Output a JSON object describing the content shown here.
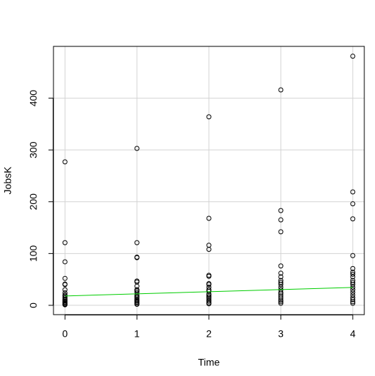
{
  "chart_data": {
    "type": "scatter",
    "xlabel": "Time",
    "ylabel": "JobsK",
    "x": [
      0,
      0,
      0,
      0,
      0,
      0,
      0,
      0,
      0,
      0,
      0,
      0,
      0,
      0,
      0,
      0,
      0,
      0,
      0,
      1,
      1,
      1,
      1,
      1,
      1,
      1,
      1,
      1,
      1,
      1,
      1,
      1,
      1,
      1,
      1,
      1,
      1,
      1,
      2,
      2,
      2,
      2,
      2,
      2,
      2,
      2,
      2,
      2,
      2,
      2,
      2,
      2,
      2,
      2,
      2,
      2,
      2,
      3,
      3,
      3,
      3,
      3,
      3,
      3,
      3,
      3,
      3,
      3,
      3,
      3,
      3,
      3,
      3,
      3,
      3,
      3,
      4,
      4,
      4,
      4,
      4,
      4,
      4,
      4,
      4,
      4,
      4,
      4,
      4,
      4,
      4,
      4,
      4,
      4,
      4,
      4
    ],
    "values": [
      277,
      121,
      84,
      52,
      41,
      40,
      30,
      24,
      20,
      18,
      15,
      12,
      10,
      8,
      6,
      5,
      3,
      2,
      1,
      303,
      121,
      93,
      92,
      47,
      45,
      37,
      30,
      28,
      25,
      20,
      17,
      15,
      12,
      10,
      8,
      6,
      4,
      2,
      364,
      168,
      116,
      108,
      58,
      56,
      42,
      40,
      35,
      30,
      27,
      22,
      20,
      17,
      14,
      11,
      8,
      5,
      3,
      416,
      183,
      165,
      142,
      76,
      62,
      55,
      48,
      44,
      40,
      35,
      30,
      25,
      22,
      18,
      14,
      10,
      7,
      4,
      481,
      219,
      196,
      167,
      96,
      71,
      64,
      60,
      55,
      48,
      44,
      40,
      35,
      30,
      25,
      20,
      15,
      11,
      7,
      4
    ],
    "color": "#000000",
    "trend": {
      "x": [
        0,
        4
      ],
      "values": [
        18,
        34.5
      ],
      "color": "#00cd00"
    },
    "xlim": [
      -0.16,
      4.16
    ],
    "xticks": [
      0,
      1,
      2,
      3,
      4
    ],
    "ylim": [
      -18,
      500
    ],
    "yticks": [
      0,
      100,
      200,
      300,
      400
    ],
    "grid": true
  }
}
